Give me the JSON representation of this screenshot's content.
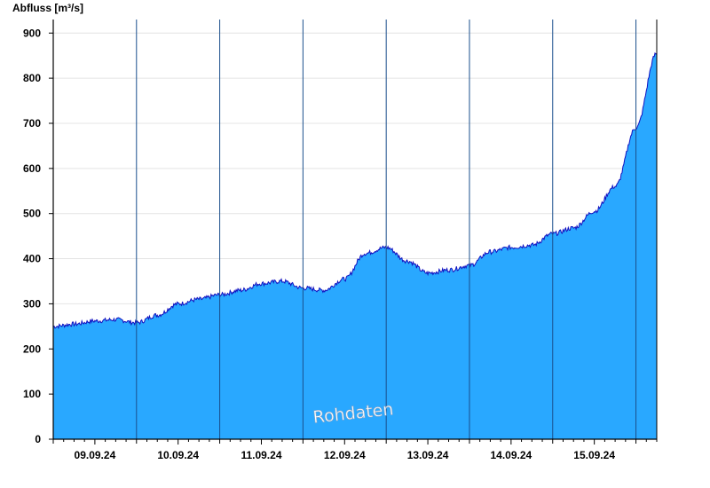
{
  "chart_data": {
    "type": "area",
    "ylabel": "Abfluss [m³/s]",
    "xlabel": "",
    "title": "",
    "watermark": "Rohdaten",
    "ylim": [
      0,
      930
    ],
    "yticks": [
      0,
      100,
      200,
      300,
      400,
      500,
      600,
      700,
      800,
      900
    ],
    "xlim": [
      "2024-09-08T12:00",
      "2024-09-15T18:00"
    ],
    "day_labels": [
      "09.09.24",
      "10.09.24",
      "11.09.24",
      "12.09.24",
      "13.09.24",
      "14.09.24",
      "15.09.24"
    ],
    "grid": "horizontal",
    "fill_color": "#29a8ff",
    "line_color": "#1010c0",
    "series": [
      {
        "x": [
          "2024-09-08T12:00",
          "2024-09-08T18:00",
          "2024-09-09T00:00",
          "2024-09-09T06:00",
          "2024-09-09T12:00",
          "2024-09-09T18:00",
          "2024-09-10T00:00",
          "2024-09-10T06:00",
          "2024-09-10T12:00",
          "2024-09-10T18:00",
          "2024-09-11T00:00",
          "2024-09-11T06:00",
          "2024-09-11T12:00",
          "2024-09-11T18:00",
          "2024-09-12T00:00",
          "2024-09-12T06:00",
          "2024-09-12T12:00",
          "2024-09-12T18:00",
          "2024-09-13T00:00",
          "2024-09-13T06:00",
          "2024-09-13T12:00",
          "2024-09-13T18:00",
          "2024-09-14T00:00",
          "2024-09-14T06:00",
          "2024-09-14T12:00",
          "2024-09-14T18:00",
          "2024-09-15T00:00",
          "2024-09-15T06:00",
          "2024-09-15T12:00",
          "2024-09-15T18:00"
        ],
        "values": [
          250,
          255,
          262,
          265,
          258,
          275,
          300,
          310,
          320,
          330,
          345,
          350,
          335,
          330,
          355,
          412,
          425,
          395,
          368,
          375,
          385,
          415,
          425,
          430,
          455,
          468,
          505,
          560,
          690,
          855
        ]
      }
    ]
  }
}
